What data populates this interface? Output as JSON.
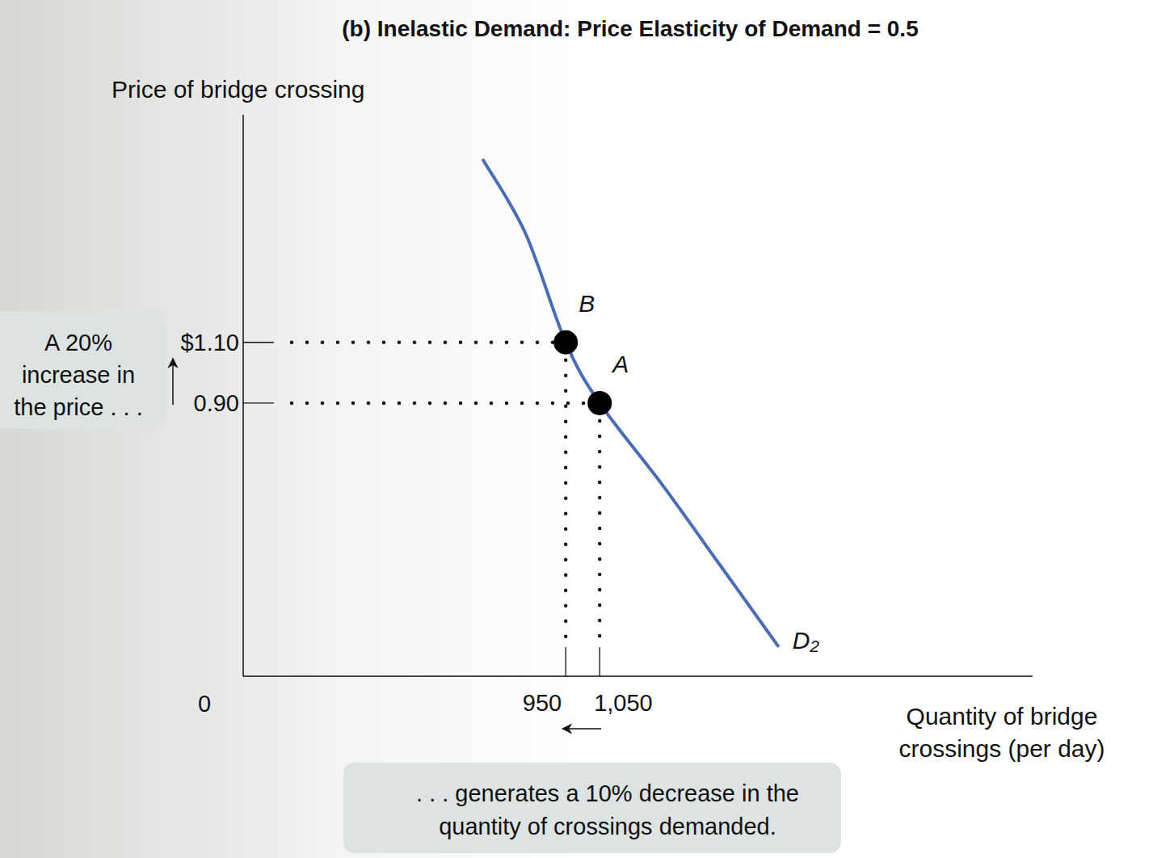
{
  "chart_data": {
    "type": "line",
    "title": "(b) Inelastic Demand: Price Elasticity of Demand = 0.5",
    "ylabel": "Price of bridge crossing",
    "xlabel": [
      "Quantity of bridge",
      "crossings (per day)"
    ],
    "xlim": [
      0,
      2325
    ],
    "ylim": [
      0,
      1.85
    ],
    "xticks": [
      950,
      {
        "value": 1050,
        "label": "1,050"
      }
    ],
    "yticks": [
      0,
      {
        "value": 0.9,
        "label": "0.90"
      },
      {
        "value": 1.1,
        "label": "$1.10"
      }
    ],
    "grid": false,
    "series": [
      {
        "name": "D₂",
        "color": "#4a6cb3",
        "x": [
          707,
          831,
          950,
          1050,
          1235,
          1402,
          1575
        ],
        "values": [
          1.7,
          1.46,
          1.1,
          0.9,
          0.63,
          0.37,
          0.1
        ]
      }
    ],
    "points": [
      {
        "label": "B",
        "x": 950,
        "y": 1.1,
        "color": "#000000"
      },
      {
        "label": "A",
        "x": 1050,
        "y": 0.9,
        "color": "#000000"
      }
    ],
    "annotations": [
      {
        "lines": [
          "A 20%",
          "increase in",
          "the price . . ."
        ]
      },
      {
        "lines": [
          ". . . generates a 10% decrease in the",
          "quantity of crossings demanded."
        ]
      }
    ]
  }
}
